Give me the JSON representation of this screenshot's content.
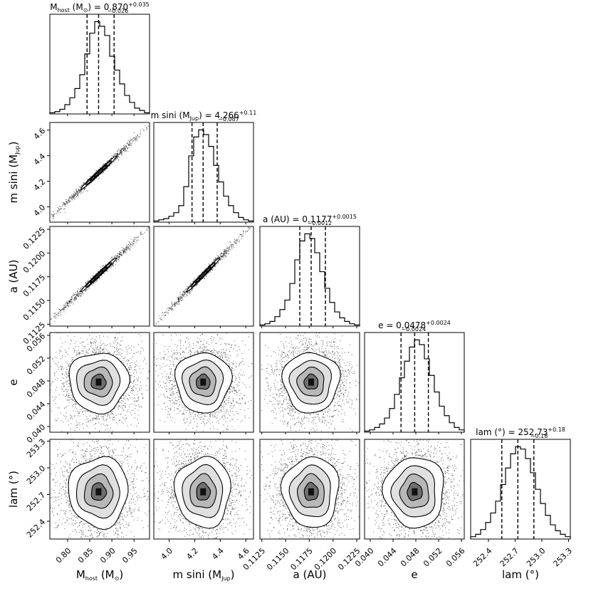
{
  "chart_data": {
    "type": "corner",
    "title": "",
    "parameters": [
      {
        "key": "mhost",
        "axis_label": [
          "M",
          "host",
          " (M",
          "⊙",
          ")"
        ],
        "title": {
          "prefix": [
            "M",
            "host",
            " (M",
            "⊙",
            ")"
          ],
          "median": "0.870",
          "plus": "+0.035",
          "minus": "−0.026"
        },
        "range": [
          0.76,
          0.985
        ],
        "ticks": [
          0.8,
          0.85,
          0.9,
          0.95
        ],
        "tick_labels": [
          "0.80",
          "0.85",
          "0.90",
          "0.95"
        ],
        "quantiles": [
          0.844,
          0.87,
          0.905
        ],
        "hist": [
          1,
          2,
          4,
          8,
          14,
          22,
          34,
          52,
          70,
          80,
          76,
          68,
          50,
          38,
          26,
          16,
          10,
          5,
          3,
          1
        ]
      },
      {
        "key": "msini",
        "axis_label": [
          "m sini (M",
          "Jup",
          ")"
        ],
        "title": {
          "prefix": [
            "m sini (M",
            "Jup",
            ")"
          ],
          "median": "4.266",
          "plus": "+0.11",
          "minus": "−0.087"
        },
        "range": [
          3.88,
          4.66
        ],
        "ticks": [
          4.0,
          4.2,
          4.4,
          4.6
        ],
        "tick_labels": [
          "4.0",
          "4.2",
          "4.4",
          "4.6"
        ],
        "quantiles": [
          4.179,
          4.266,
          4.376
        ],
        "hist": [
          1,
          2,
          3,
          5,
          8,
          14,
          30,
          56,
          72,
          78,
          74,
          64,
          48,
          34,
          22,
          14,
          8,
          4,
          2,
          1
        ]
      },
      {
        "key": "a",
        "axis_label": [
          "a (AU)"
        ],
        "title": {
          "prefix": [
            "a (AU)"
          ],
          "median": "0.1177",
          "plus": "+0.0015",
          "minus": "−0.0012"
        },
        "range": [
          0.1123,
          0.1228
        ],
        "ticks": [
          0.1125,
          0.115,
          0.1175,
          0.12,
          0.1225
        ],
        "tick_labels": [
          "0.1125",
          "0.1150",
          "0.1175",
          "0.1200",
          "0.1225"
        ],
        "quantiles": [
          0.1165,
          0.1177,
          0.1192
        ],
        "hist": [
          1,
          2,
          4,
          8,
          14,
          22,
          36,
          56,
          72,
          78,
          74,
          62,
          46,
          32,
          20,
          12,
          7,
          4,
          2,
          1
        ]
      },
      {
        "key": "e",
        "axis_label": [
          "e"
        ],
        "title": {
          "prefix": [
            "e"
          ],
          "median": "0.0478",
          "plus": "+0.0024",
          "minus": "−0.0024"
        },
        "range": [
          0.039,
          0.0565
        ],
        "ticks": [
          0.04,
          0.044,
          0.048,
          0.052,
          0.056
        ],
        "tick_labels": [
          "0.040",
          "0.044",
          "0.048",
          "0.052",
          "0.056"
        ],
        "quantiles": [
          0.0454,
          0.0478,
          0.0502
        ],
        "hist": [
          1,
          2,
          4,
          7,
          12,
          20,
          32,
          46,
          60,
          72,
          78,
          74,
          62,
          48,
          34,
          22,
          14,
          8,
          4,
          2
        ]
      },
      {
        "key": "lam",
        "axis_label": [
          "lam (°)"
        ],
        "title": {
          "prefix": [
            "lam (°)"
          ],
          "median": "252.73",
          "plus": "+0.18",
          "minus": "−0.18"
        },
        "range": [
          252.2,
          253.32
        ],
        "ticks": [
          252.4,
          252.7,
          253.0,
          253.3
        ],
        "tick_labels": [
          "252.4",
          "252.7",
          "253.0",
          "253.3"
        ],
        "quantiles": [
          252.55,
          252.73,
          252.91
        ],
        "hist": [
          2,
          4,
          8,
          14,
          22,
          32,
          46,
          60,
          72,
          78,
          76,
          68,
          56,
          42,
          30,
          20,
          12,
          7,
          4,
          2
        ]
      }
    ],
    "x_axis_labels": [
      [
        "M",
        "host",
        " (M",
        "⊙",
        ")"
      ],
      [
        "m sini (M",
        "Jup",
        ")"
      ],
      [
        "a (AU)"
      ],
      [
        "e"
      ],
      [
        "lam (°)"
      ]
    ],
    "y_axis_labels": [
      [
        "m sini (M",
        "Jup",
        ")"
      ],
      [
        "a (AU)"
      ],
      [
        "e"
      ],
      [
        "lam (°)"
      ]
    ],
    "correlations": {
      "mhost-msini": 0.995,
      "mhost-a": 0.995,
      "msini-a": 0.995
    },
    "grid": false,
    "legend": "none"
  }
}
